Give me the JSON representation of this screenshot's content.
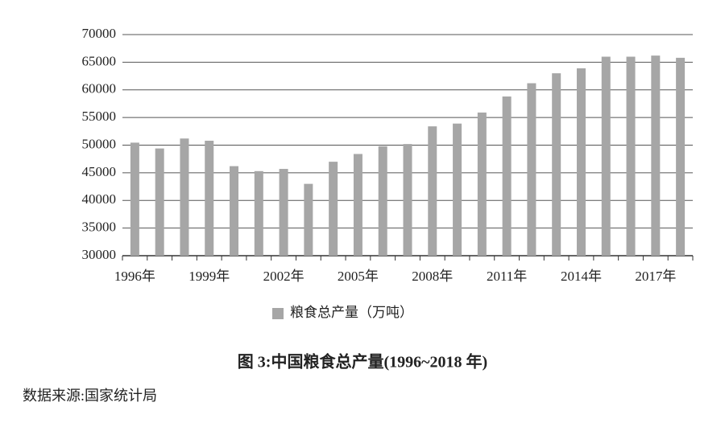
{
  "chart_data": {
    "type": "bar",
    "title": "图 3:中国粮食总产量(1996~2018 年)",
    "source": "数据来源:国家统计局",
    "categories": [
      "1996年",
      null,
      null,
      "1999年",
      null,
      null,
      "2002年",
      null,
      null,
      "2005年",
      null,
      null,
      "2008年",
      null,
      null,
      "2011年",
      null,
      null,
      "2014年",
      null,
      null,
      "2017年",
      null
    ],
    "series": [
      {
        "name": "粮食总产量（万吨）",
        "color": "#a6a6a6",
        "values": [
          50450,
          49400,
          51200,
          50800,
          46200,
          45300,
          45700,
          43000,
          47000,
          48400,
          49800,
          50200,
          53400,
          53900,
          55900,
          58800,
          61200,
          63000,
          63900,
          66000,
          66000,
          66200,
          65800
        ]
      }
    ],
    "ylim": [
      30000,
      70000
    ],
    "yticks": [
      30000,
      35000,
      40000,
      45000,
      50000,
      55000,
      60000,
      65000,
      70000
    ],
    "grid": true,
    "legend": "bottom"
  }
}
